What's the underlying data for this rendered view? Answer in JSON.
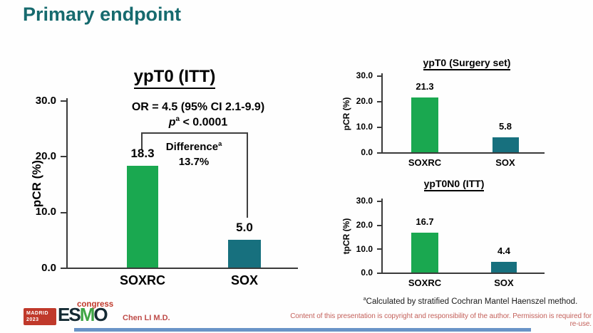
{
  "slide": {
    "title": "Primary endpoint"
  },
  "colors": {
    "title_accent": "#166A6E",
    "soxrc_bar": "#1AA850",
    "sox_bar": "#17707E",
    "axis": "#3A3A3A",
    "footnote_text": "#1A1A1A",
    "presenter_text": "#BE4B48",
    "copyright_text": "#C4625C",
    "logo_red": "#C0392B",
    "logo_dark": "#142A33",
    "logo_green": "#3FA544",
    "bottom_bar": "#4F81BD"
  },
  "chart_data": [
    {
      "id": "main",
      "type": "bar",
      "title": "ypT0 (ITT)",
      "ylabel": "pCR (%)",
      "ylim": [
        0,
        30
      ],
      "ytick_labels": [
        "30.0",
        "20.0",
        "10.0",
        "0.0"
      ],
      "categories": [
        "SOXRC",
        "SOX"
      ],
      "values": [
        18.3,
        5.0
      ],
      "value_labels": [
        "18.3",
        "5.0"
      ],
      "bar_colors": [
        "#1AA850",
        "#17707E"
      ],
      "legend": "none",
      "grid": false,
      "annotations": {
        "or_text": "OR = 4.5 (95% CI 2.1-9.9)",
        "p_prefix": "p",
        "p_sup": "a",
        "p_rest": " < 0.0001",
        "difference_text": "Difference",
        "difference_sup": "a",
        "difference_value": "13.7%"
      }
    },
    {
      "id": "surgery",
      "type": "bar",
      "title": "ypT0 (Surgery set)",
      "ylabel": "pCR (%)",
      "ylim": [
        0,
        30
      ],
      "ytick_labels": [
        "30.0",
        "20.0",
        "10.0",
        "0.0"
      ],
      "categories": [
        "SOXRC",
        "SOX"
      ],
      "values": [
        21.3,
        5.8
      ],
      "value_labels": [
        "21.3",
        "5.8"
      ],
      "bar_colors": [
        "#1AA850",
        "#17707E"
      ],
      "legend": "none",
      "grid": false
    },
    {
      "id": "tpcr",
      "type": "bar",
      "title": "ypT0N0 (ITT)",
      "ylabel": "tpCR (%)",
      "ylim": [
        0,
        30
      ],
      "ytick_labels": [
        "30.0",
        "20.0",
        "10.0",
        "0.0"
      ],
      "categories": [
        "SOXRC",
        "SOX"
      ],
      "values": [
        16.7,
        4.4
      ],
      "value_labels": [
        "16.7",
        "4.4"
      ],
      "bar_colors": [
        "#1AA850",
        "#17707E"
      ],
      "legend": "none",
      "grid": false
    }
  ],
  "footnote": {
    "sup": "a",
    "text": "Calculated by stratified Cochran Mantel Haenszel method."
  },
  "footer": {
    "logo": {
      "venue": "MADRID",
      "year": "2023",
      "org": "ESMO",
      "suffix": "congress"
    },
    "presenter": "Chen LI M.D.",
    "copyright": "Content of this presentation is copyright and responsibility of the author. Permission is required for re-use."
  }
}
